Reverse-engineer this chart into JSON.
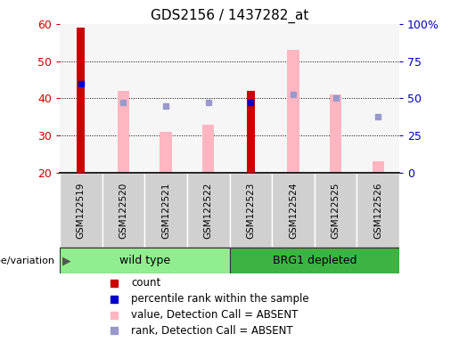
{
  "title": "GDS2156 / 1437282_at",
  "samples": [
    "GSM122519",
    "GSM122520",
    "GSM122521",
    "GSM122522",
    "GSM122523",
    "GSM122524",
    "GSM122525",
    "GSM122526"
  ],
  "ylim_left": [
    20,
    60
  ],
  "ylim_right": [
    0,
    100
  ],
  "yticks_left": [
    20,
    30,
    40,
    50,
    60
  ],
  "yticks_right": [
    0,
    25,
    50,
    75,
    100
  ],
  "ytick_labels_right": [
    "0",
    "25",
    "50",
    "75",
    "100%"
  ],
  "red_bars": {
    "GSM122519": 59,
    "GSM122523": 42
  },
  "blue_markers": {
    "GSM122519": 44,
    "GSM122523": 39
  },
  "pink_bars": {
    "GSM122520": 42,
    "GSM122521": 31,
    "GSM122522": 33,
    "GSM122524": 53,
    "GSM122525": 41,
    "GSM122526": 23
  },
  "light_blue_markers": {
    "GSM122520": 39,
    "GSM122521": 38,
    "GSM122522": 39,
    "GSM122524": 41,
    "GSM122525": 40,
    "GSM122526": 35
  },
  "groups": [
    {
      "name": "wild type",
      "indices": [
        0,
        1,
        2,
        3
      ],
      "color": "#90EE90"
    },
    {
      "name": "BRG1 depleted",
      "indices": [
        4,
        5,
        6,
        7
      ],
      "color": "#3CB343"
    }
  ],
  "colors": {
    "red_bar": "#CC0000",
    "blue_marker": "#0000CC",
    "pink_bar": "#FFB6C1",
    "light_blue_marker": "#9999CC",
    "background_xtick": "#C8C8C8",
    "left_tick_color": "#CC0000",
    "right_tick_color": "#0000BB"
  },
  "red_bar_width": 0.18,
  "pink_bar_width": 0.28,
  "marker_size": 5,
  "group_label": "genotype/variation"
}
